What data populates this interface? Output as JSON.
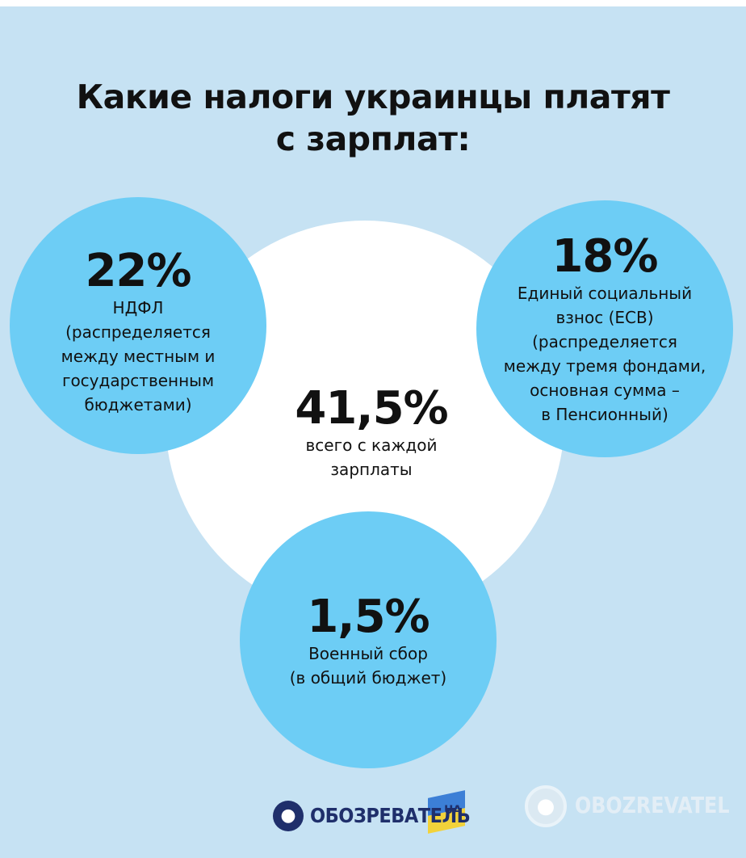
{
  "title": {
    "line1": "Какие налоги украинцы платят",
    "line2": "с зарплат:"
  },
  "left": {
    "percent": "22%",
    "lines": [
      "НДФЛ",
      "(распределяется",
      "между местным и",
      "государственным",
      "бюджетами)"
    ]
  },
  "right": {
    "percent": "18%",
    "lines": [
      "Единый социальный",
      "взнос (ЕСВ)",
      "(распределяется",
      "между тремя фондами,",
      "основная сумма –",
      "в Пенсионный)"
    ]
  },
  "center": {
    "percent": "41,5%",
    "lines": [
      "всего с каждой",
      "зарплаты"
    ]
  },
  "bottom": {
    "percent": "1,5%",
    "lines": [
      "Военный сбор",
      "(в общий бюджет)"
    ]
  },
  "logos": {
    "primary_text": "ОБОЗРЕВАТЕЛЬ",
    "primary_suffix": "UA",
    "watermark_text": "OBOZREVATEL"
  },
  "colors": {
    "background": "#c6e2f3",
    "circle_blue": "#6dcdf5",
    "center_white": "#ffffff"
  }
}
